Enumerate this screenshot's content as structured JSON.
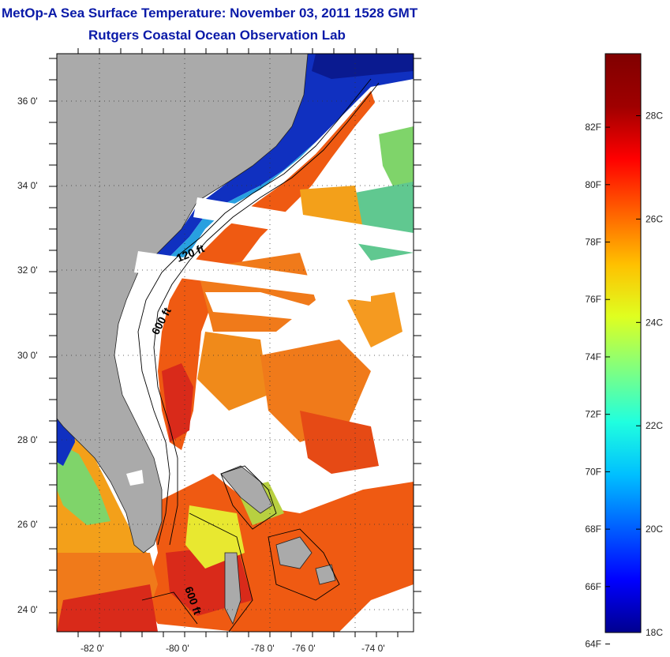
{
  "header": {
    "title_line1": "MetOp-A Sea Surface Temperature:  November 03, 2011 1528 GMT",
    "title_line2": "Rutgers Coastal Ocean Observation Lab"
  },
  "map": {
    "lon_labels": [
      "-82 0'",
      "-80 0'",
      "-78 0'",
      "-76 0'",
      "-74 0'"
    ],
    "lat_labels": [
      "36 0'",
      "34 0'",
      "32 0'",
      "30 0'",
      "28 0'",
      "26 0'",
      "24 0'"
    ],
    "contour_labels": [
      "120 ft",
      "600 ft",
      "600 ft"
    ],
    "colors": {
      "land": "#aaaaaa",
      "cloud": "#ffffff",
      "warm": "#ef5a12",
      "hot": "#d92a1a",
      "mid": "#f3a01a",
      "cool_yellow": "#e8e830",
      "green": "#7fd46a",
      "cold": "#1030c0",
      "deep_cold": "#0a1a90"
    }
  },
  "colorbar": {
    "fahrenheit_labels": [
      "82F",
      "80F",
      "78F",
      "76F",
      "74F",
      "72F",
      "70F",
      "68F",
      "66F",
      "64F"
    ],
    "celsius_labels": [
      "28C",
      "26C",
      "24C",
      "22C",
      "20C",
      "18C"
    ],
    "range_c": [
      18,
      29.2
    ],
    "palette": [
      "#00008f",
      "#0000ff",
      "#0060ff",
      "#00c0ff",
      "#20ffdf",
      "#80ff80",
      "#dfff20",
      "#ffc000",
      "#ff6000",
      "#ff0000",
      "#9f0000",
      "#800000"
    ]
  }
}
